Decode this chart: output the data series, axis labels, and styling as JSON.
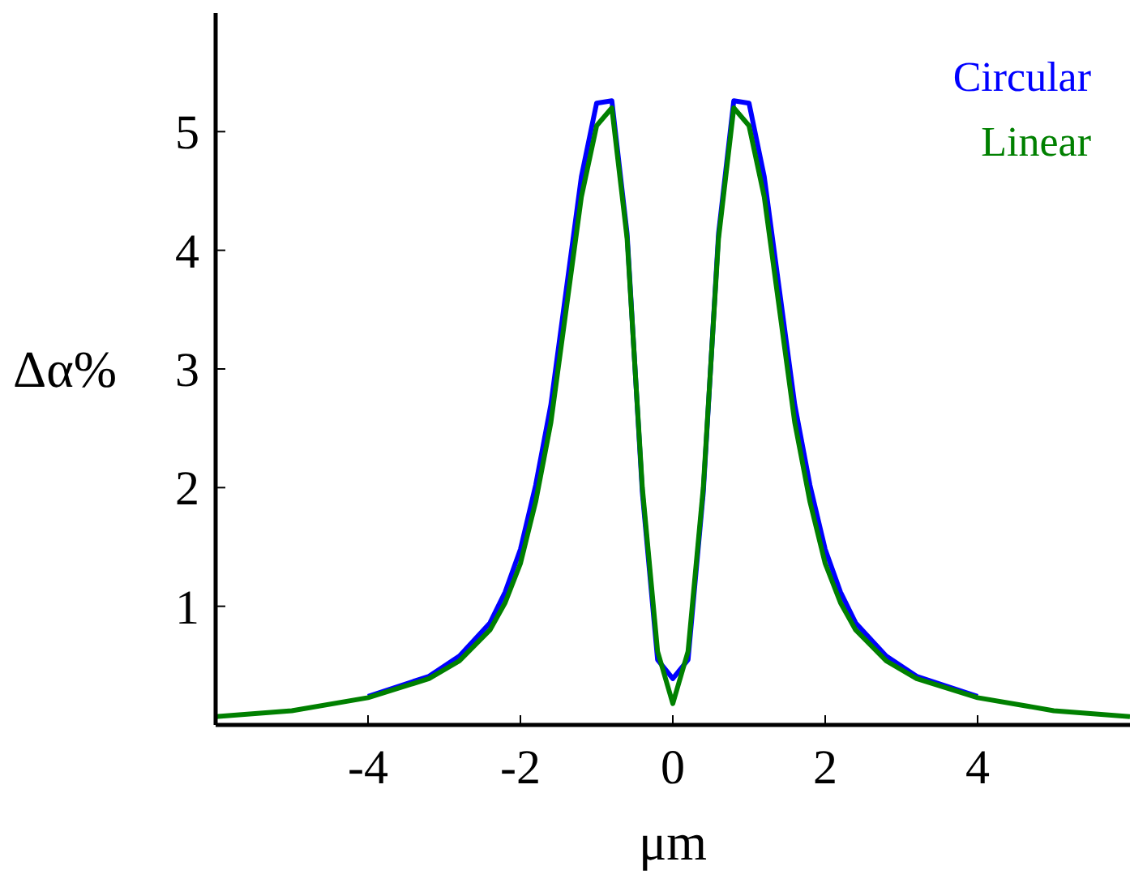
{
  "chart_data": {
    "type": "line",
    "xlabel": "μm",
    "ylabel": "Δα%",
    "x": [
      -6,
      -5,
      -4,
      -3.2,
      -2.8,
      -2.4,
      -2.2,
      -2,
      -1.8,
      -1.6,
      -1.4,
      -1.2,
      -1,
      -0.8,
      -0.6,
      -0.4,
      -0.2,
      0,
      0.2,
      0.4,
      0.6,
      0.8,
      1,
      1.2,
      1.4,
      1.6,
      1.8,
      2,
      2.2,
      2.4,
      2.8,
      3.2,
      4,
      5,
      6
    ],
    "series": [
      {
        "name": "Circular",
        "color": "#0000ff",
        "values": [
          null,
          null,
          0.24,
          0.41,
          0.58,
          0.86,
          1.12,
          1.48,
          2.02,
          2.7,
          3.66,
          4.62,
          5.24,
          5.26,
          4.14,
          1.96,
          0.55,
          0.39,
          0.55,
          1.96,
          4.14,
          5.26,
          5.24,
          4.62,
          3.66,
          2.7,
          2.02,
          1.48,
          1.12,
          0.86,
          0.58,
          0.41,
          0.24,
          null,
          null
        ]
      },
      {
        "name": "Linear",
        "color": "#008000",
        "values": [
          0.07,
          0.12,
          0.23,
          0.39,
          0.54,
          0.8,
          1.03,
          1.36,
          1.88,
          2.55,
          3.5,
          4.45,
          5.05,
          5.2,
          4.1,
          2.0,
          0.62,
          0.18,
          0.62,
          2.0,
          4.1,
          5.2,
          5.05,
          4.45,
          3.5,
          2.55,
          1.88,
          1.36,
          1.03,
          0.8,
          0.54,
          0.39,
          0.23,
          0.12,
          0.07
        ]
      }
    ],
    "xlim": [
      -6,
      6
    ],
    "ylim": [
      0,
      6
    ],
    "xticks": [
      -4,
      -2,
      0,
      2,
      4
    ],
    "yticks": [
      1,
      2,
      3,
      4,
      5
    ],
    "grid": false,
    "legend": "top right",
    "line_style": "solid",
    "marker": "none"
  }
}
